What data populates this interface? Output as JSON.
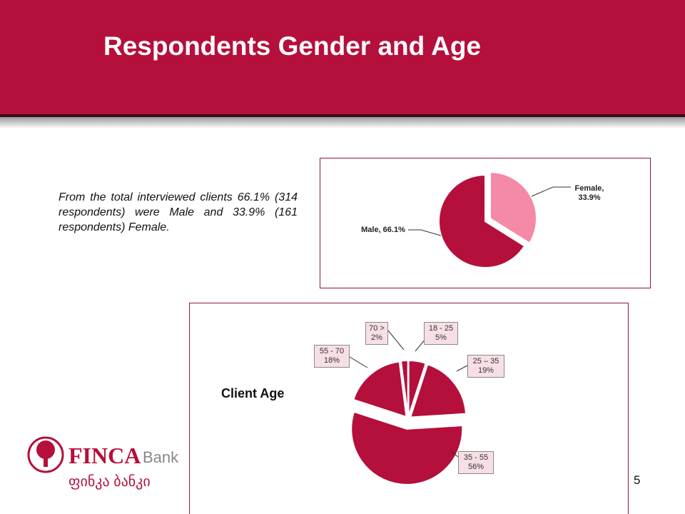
{
  "slide": {
    "title": "Respondents Gender and Age",
    "paragraph": "From the total interviewed clients 66.1% (314 respondents) were Male and 33.9% (161 respondents) Female.",
    "page_number": "5",
    "logo": {
      "name": "FINCA",
      "suffix": "Bank",
      "georgian": "ფინკა ბანკი"
    }
  },
  "chart_data": [
    {
      "type": "pie",
      "categories": [
        "Female",
        "Male"
      ],
      "values": [
        33.9,
        66.1
      ],
      "value_labels": [
        "Female, 33.9%",
        "Male, 66.1%"
      ],
      "colors": [
        "#f48aa8",
        "#b50f3b"
      ]
    },
    {
      "type": "pie",
      "title": "Client Age",
      "categories": [
        "18 - 25",
        "25 – 35",
        "35 - 55",
        "55 - 70",
        "70 >"
      ],
      "values": [
        5,
        19,
        56,
        18,
        2
      ],
      "value_labels": [
        "5%",
        "19%",
        "56%",
        "18%",
        "2%"
      ],
      "color": "#b50f3b"
    }
  ]
}
